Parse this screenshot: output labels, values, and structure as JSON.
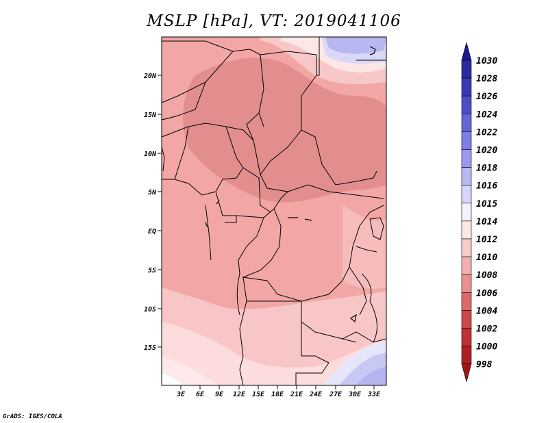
{
  "title": "MSLP [hPa], VT: 2019041106",
  "credit": "GrADS: IGES/COLA",
  "map": {
    "region": "Central Africa",
    "lat_labels": [
      "20N",
      "15N",
      "10N",
      "5N",
      "EQ",
      "5S",
      "10S",
      "15S"
    ],
    "lon_labels": [
      "3E",
      "6E",
      "9E",
      "12E",
      "15E",
      "18E",
      "21E",
      "24E",
      "27E",
      "30E",
      "33E"
    ]
  },
  "colorbar": {
    "levels": [
      "1030",
      "1028",
      "1026",
      "1024",
      "1022",
      "1020",
      "1018",
      "1016",
      "1015",
      "1014",
      "1012",
      "1010",
      "1008",
      "1006",
      "1004",
      "1002",
      "1000",
      "998"
    ],
    "colors": [
      "#1a1a8c",
      "#2a2aa0",
      "#3a3ab4",
      "#4d4dc8",
      "#6565d8",
      "#7e7ee4",
      "#9a9aec",
      "#b8b8f2",
      "#d6d6f8",
      "#f2f2fc",
      "#fde6e6",
      "#f9cccc",
      "#f2b0b0",
      "#e89090",
      "#dc6a6a",
      "#d04848",
      "#c03030",
      "#b01e1e",
      "#a01616"
    ]
  }
}
